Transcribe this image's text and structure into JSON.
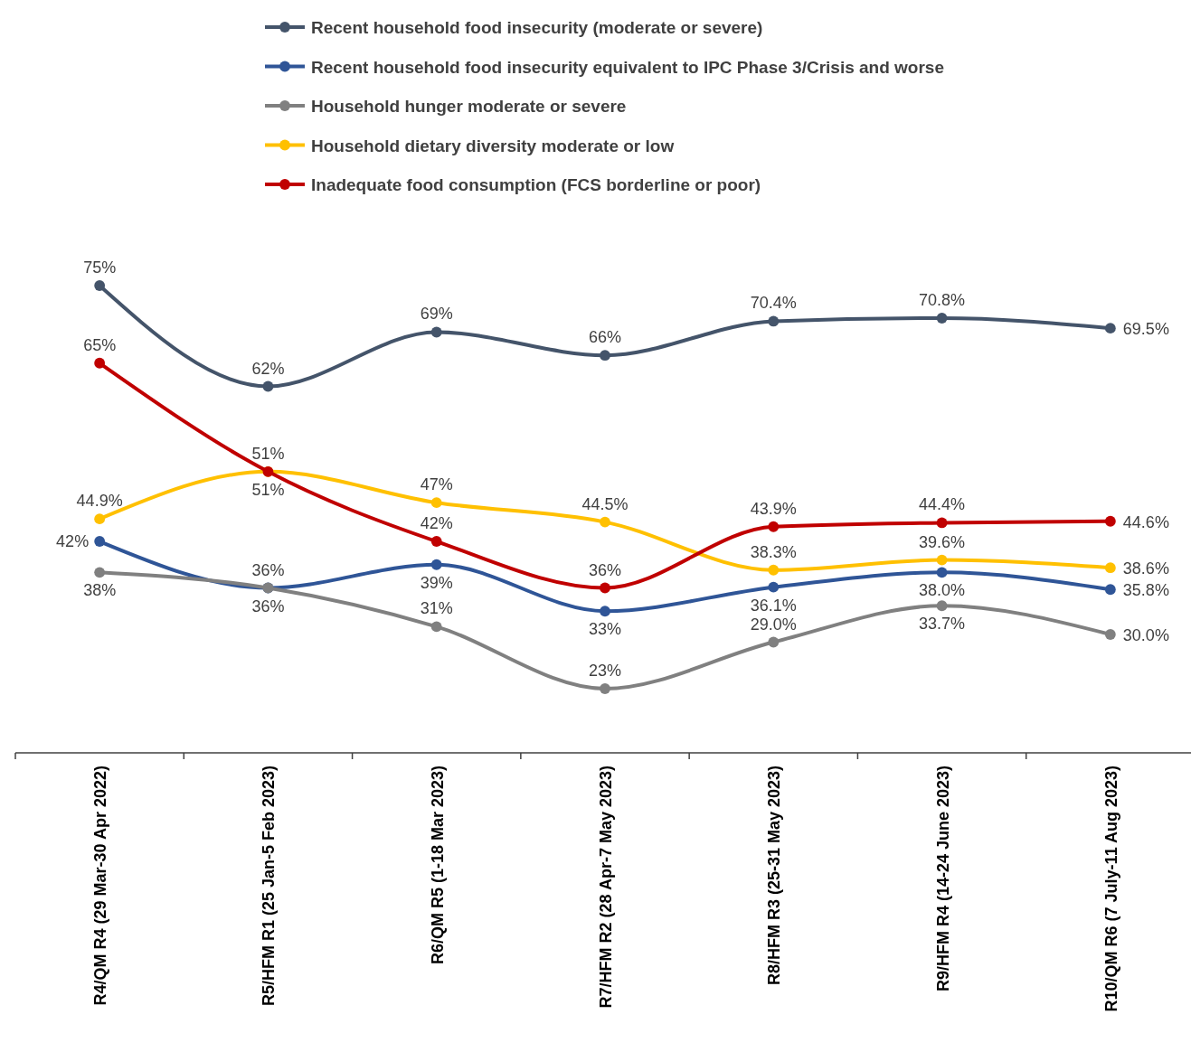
{
  "chart_data": {
    "type": "line",
    "categories": [
      "R4/QM R4 (29 Mar-30 Apr 2022)",
      "R5/HFM R1 (25 Jan-5 Feb 2023)",
      "R6/QM R5 (1-18 Mar 2023)",
      "R7/HFM R2 (28 Apr-7 May 2023)",
      "R8/HFM R3 (25-31 May 2023)",
      "R9/HFM R4 (14-24 June 2023)",
      "R10/QM R6 (7 July-11 Aug 2023)"
    ],
    "series": [
      {
        "name": "Recent household food insecurity (moderate or severe)",
        "color": "#44546a",
        "values": [
          75,
          62,
          69,
          66,
          70.4,
          70.8,
          69.5
        ],
        "value_labels": [
          "75%",
          "62%",
          "69%",
          "66%",
          "70.4%",
          "70.8%",
          "69.5%"
        ]
      },
      {
        "name": "Recent household food insecurity equivalent to IPC Phase 3/Crisis and worse",
        "color": "#2f5597",
        "values": [
          42,
          36,
          39,
          33,
          36.1,
          38.0,
          35.8
        ],
        "value_labels": [
          "42%",
          "36%",
          "39%",
          "33%",
          "36.1%",
          "38.0%",
          "35.8%"
        ]
      },
      {
        "name": "Household hunger moderate or severe",
        "color": "#808080",
        "values": [
          38,
          36,
          31,
          23,
          29.0,
          33.7,
          30.0
        ],
        "value_labels": [
          "38%",
          "36%",
          "31%",
          "23%",
          "29.0%",
          "33.7%",
          "30.0%"
        ]
      },
      {
        "name": "Household dietary diversity moderate or low",
        "color": "#ffc000",
        "values": [
          44.9,
          51,
          47,
          44.5,
          38.3,
          39.6,
          38.6
        ],
        "value_labels": [
          "44.9%",
          "51%",
          "47%",
          "44.5%",
          "38.3%",
          "39.6%",
          "38.6%"
        ]
      },
      {
        "name": "Inadequate food consumption (FCS borderline or poor)",
        "color": "#c00000",
        "values": [
          65,
          51,
          42,
          36,
          43.9,
          44.4,
          44.6
        ],
        "value_labels": [
          "65%",
          "51%",
          "42%",
          "36%",
          "43.9%",
          "44.4%",
          "44.6%"
        ]
      }
    ],
    "marker": "circle",
    "line_style": "solid",
    "legend": "top"
  }
}
